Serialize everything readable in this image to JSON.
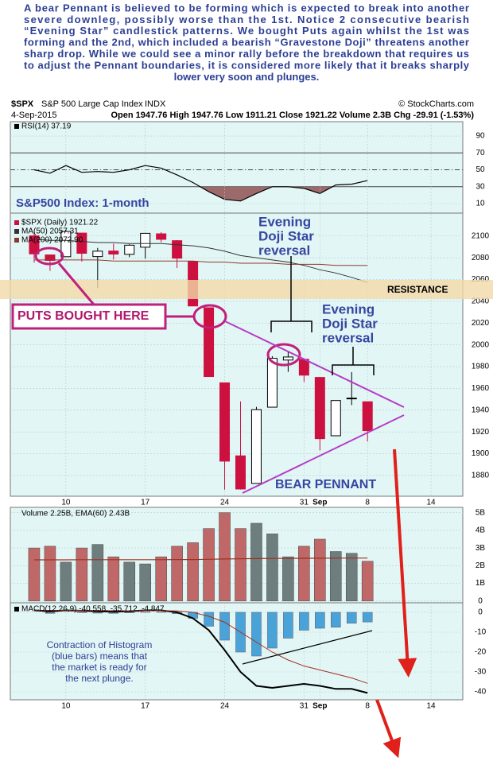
{
  "intro": [
    "A bear Pennant is believed to be forming which is expected to break into another",
    "severe downleg, possibly worse than the 1st. Notice 2 consecutive bearish",
    "“Evening Star” candlestick patterns. We bought Puts again whilst the 1st was",
    "forming and the 2nd, which included a bearish “Gravestone Doji” threatens another",
    "sharp drop. While we could see a minor rally before the breakdown that requires us",
    "to adjust the Pennant boundaries, it is considered more likely that it breaks sharply",
    "lower very soon and plunges."
  ],
  "header": {
    "symbol": "$SPX",
    "name": "S&P 500 Large Cap Index",
    "exchange": "INDX",
    "credit": "© StockCharts.com",
    "date": "4-Sep-2015",
    "stats": "Open 1947.76  High 1947.76  Low 1911.21  Close 1921.22  Volume 2.3B  Chg -29.91 (-1.53%)"
  },
  "chart_data": [
    {
      "type": "line",
      "x": [
        0,
        1,
        2,
        3,
        4,
        5,
        6,
        7,
        8,
        9,
        10,
        11,
        12,
        13,
        14,
        15,
        16,
        17,
        18,
        19,
        20,
        21
      ],
      "xlim": [
        -1.5,
        27
      ],
      "ylim": [
        -1.3,
        107
      ],
      "yticks": [
        10,
        30,
        50,
        70,
        90
      ],
      "levels": [
        70,
        50,
        30
      ],
      "oversold_color": "#9c6a6a",
      "series": [
        {
          "name": "RSI(14) 37.19",
          "color": "#000000",
          "values": [
            50,
            46,
            55,
            47,
            48,
            47,
            50,
            55,
            52,
            44,
            35,
            24,
            15,
            13,
            22,
            30,
            30,
            28,
            22,
            32,
            33,
            37.19
          ]
        }
      ]
    },
    {
      "type": "candlestick",
      "x": [
        0,
        1,
        2,
        3,
        4,
        5,
        6,
        7,
        8,
        9,
        10,
        11,
        12,
        13,
        14,
        15,
        16,
        17,
        18,
        19,
        20,
        21
      ],
      "xlim": [
        -1.5,
        27
      ],
      "ylim": [
        1861,
        2121
      ],
      "yticks": [
        1880,
        1900,
        1920,
        1940,
        1960,
        1980,
        2000,
        2020,
        2040,
        2060,
        2080,
        2100
      ],
      "xticks": [
        {
          "value": 2,
          "label": "10"
        },
        {
          "value": 7,
          "label": "17"
        },
        {
          "value": 12,
          "label": "24"
        },
        {
          "value": 17,
          "label": "31"
        },
        {
          "value": 18,
          "label": "Sep"
        },
        {
          "value": 21,
          "label": "8"
        },
        {
          "value": 25,
          "label": "14"
        }
      ],
      "down_color": "#cc1040",
      "up_color": "#000000",
      "series": [
        {
          "name": "$SPX (Daily) 1921.22",
          "open": [
            2100.13,
            2082.61,
            2080.98,
            2102.66,
            2081.1,
            2086.19,
            2083.15,
            2089.7,
            2101.99,
            2095.69,
            2076.61,
            2034.08,
            1965.15,
            1898.08,
            1872.75,
            1942.77,
            1986.06,
            1986.73,
            1970.09,
            1916.52,
            1950.79,
            1947.76
          ],
          "high": [
            2103.32,
            2082.61,
            2105.35,
            2102.66,
            2089.06,
            2092.93,
            2092.45,
            2102.87,
            2103.47,
            2096.17,
            2076.61,
            2034.08,
            1965.15,
            1948.04,
            1943.09,
            1989.6,
            1993.48,
            1986.73,
            1970.09,
            1948.91,
            1975.01,
            1947.76
          ],
          "low": [
            2075.53,
            2067.91,
            2080.98,
            2076.49,
            2052.09,
            2078.26,
            2080.61,
            2079.3,
            2094.14,
            2070.53,
            2035.73,
            1970.89,
            1867.01,
            1867.08,
            1872.75,
            1942.77,
            1975.19,
            1965.98,
            1903.07,
            1916.52,
            1944.72,
            1911.21
          ],
          "close": [
            2083.56,
            2077.57,
            2104.18,
            2084.07,
            2086.05,
            2083.39,
            2091.54,
            2102.44,
            2096.92,
            2079.61,
            2035.73,
            1970.89,
            1893.21,
            1867.61,
            1940.51,
            1987.66,
            1988.87,
            1972.18,
            1913.85,
            1948.86,
            1951.13,
            1921.22
          ]
        },
        {
          "name": "MA(50) 2057.31",
          "color": "#333333",
          "values": [
            2097,
            2096,
            2096,
            2095,
            2094,
            2094,
            2093,
            2093,
            2093,
            2092,
            2091,
            2089,
            2086,
            2082,
            2080,
            2078,
            2076,
            2073,
            2069,
            2066,
            2062,
            2057.31
          ]
        },
        {
          "name": "MA(200) 2072.90",
          "color": "#8b3a2a",
          "values": [
            2078,
            2078,
            2078,
            2078,
            2078,
            2077,
            2077,
            2077,
            2077,
            2077,
            2077,
            2076,
            2076,
            2075,
            2075,
            2075,
            2074,
            2074,
            2074,
            2073,
            2073,
            2072.9
          ]
        }
      ],
      "annotations": [
        {
          "text": "S&P500 Index: 1-month"
        },
        {
          "lines": [
            "Evening",
            "Doji Star",
            "reversal"
          ]
        },
        {
          "lines": [
            "Evening",
            "Doji Star",
            "reversal"
          ]
        },
        {
          "text": "RESISTANCE"
        },
        {
          "text": "PUTS BOUGHT HERE"
        },
        {
          "text": "BEAR PENNANT"
        }
      ]
    },
    {
      "type": "bar",
      "legend": "Volume 2.25B, EMA(60) 2.43B",
      "x": [
        0,
        1,
        2,
        3,
        4,
        5,
        6,
        7,
        8,
        9,
        10,
        11,
        12,
        13,
        14,
        15,
        16,
        17,
        18,
        19,
        20,
        21
      ],
      "xlim": [
        -1.5,
        27
      ],
      "ylim": [
        -0.1,
        5.3
      ],
      "yticks": [
        {
          "value": 0,
          "label": "0"
        },
        {
          "value": 1,
          "label": "1B"
        },
        {
          "value": 2,
          "label": "2B"
        },
        {
          "value": 3,
          "label": "3B"
        },
        {
          "value": 4,
          "label": "4B"
        },
        {
          "value": 5,
          "label": "5B"
        }
      ],
      "series": [
        {
          "values": [
            3.0,
            3.1,
            2.2,
            3.0,
            3.2,
            2.5,
            2.2,
            2.1,
            2.5,
            3.1,
            3.3,
            4.1,
            5.0,
            4.1,
            4.4,
            3.8,
            2.5,
            3.1,
            3.5,
            2.8,
            2.7,
            2.25
          ],
          "colors": [
            "#c06868",
            "#c06868",
            "#6e7e7e",
            "#c06868",
            "#6e7e7e",
            "#c06868",
            "#6e7e7e",
            "#6e7e7e",
            "#c06868",
            "#c06868",
            "#c06868",
            "#c06868",
            "#c06868",
            "#c06868",
            "#6e7e7e",
            "#6e7e7e",
            "#6e7e7e",
            "#c06868",
            "#c06868",
            "#6e7e7e",
            "#6e7e7e",
            "#c06868"
          ]
        },
        {
          "color": "#a03020",
          "values": [
            2.33,
            2.33,
            2.33,
            2.34,
            2.34,
            2.34,
            2.34,
            2.34,
            2.34,
            2.35,
            2.35,
            2.36,
            2.38,
            2.39,
            2.4,
            2.41,
            2.41,
            2.42,
            2.42,
            2.43,
            2.43,
            2.43
          ]
        }
      ]
    },
    {
      "type": "combo",
      "legend": "MACD(12,26,9) -40.558, -35.712, -4.847",
      "x": [
        0,
        1,
        2,
        3,
        4,
        5,
        6,
        7,
        8,
        9,
        10,
        11,
        12,
        13,
        14,
        15,
        16,
        17,
        18,
        19,
        20,
        21
      ],
      "xlim": [
        -1.5,
        27
      ],
      "ylim": [
        -44,
        4.8
      ],
      "yticks": [
        -40,
        -30,
        -20,
        -10,
        0
      ],
      "xticks": [
        {
          "value": 2,
          "label": "10"
        },
        {
          "value": 7,
          "label": "17"
        },
        {
          "value": 12,
          "label": "24"
        },
        {
          "value": 17,
          "label": "31"
        },
        {
          "value": 18,
          "label": "Sep"
        },
        {
          "value": 21,
          "label": "8"
        },
        {
          "value": 25,
          "label": "14"
        }
      ],
      "series": [
        {
          "color": "#4aa3d8",
          "values": [
            0,
            -0.5,
            0,
            -0.2,
            -0.4,
            -0.5,
            -0.2,
            0.2,
            0.2,
            -0.7,
            -3,
            -7,
            -14,
            -20,
            -22,
            -18,
            -13,
            -9,
            -8,
            -7.5,
            -5.5,
            -4.847
          ]
        },
        {
          "color": "#000000",
          "values": [
            1,
            0.5,
            1,
            0.8,
            0.5,
            0.3,
            0.5,
            1,
            1,
            0,
            -3,
            -9,
            -19,
            -30,
            -37,
            -38,
            -37,
            -36,
            -37,
            -38.5,
            -38.5,
            -40.558
          ]
        },
        {
          "color": "#a03020",
          "values": [
            1,
            1,
            1,
            1,
            0.9,
            0.8,
            0.7,
            0.8,
            0.8,
            0.7,
            0,
            -2,
            -5,
            -10,
            -15,
            -20,
            -24,
            -27,
            -29,
            -31,
            -33,
            -35.712
          ]
        }
      ],
      "annotations": [
        {
          "lines": [
            "Contraction of Histogram",
            "(blue bars) means that",
            "the market is ready for",
            "the next plunge."
          ]
        }
      ]
    }
  ]
}
